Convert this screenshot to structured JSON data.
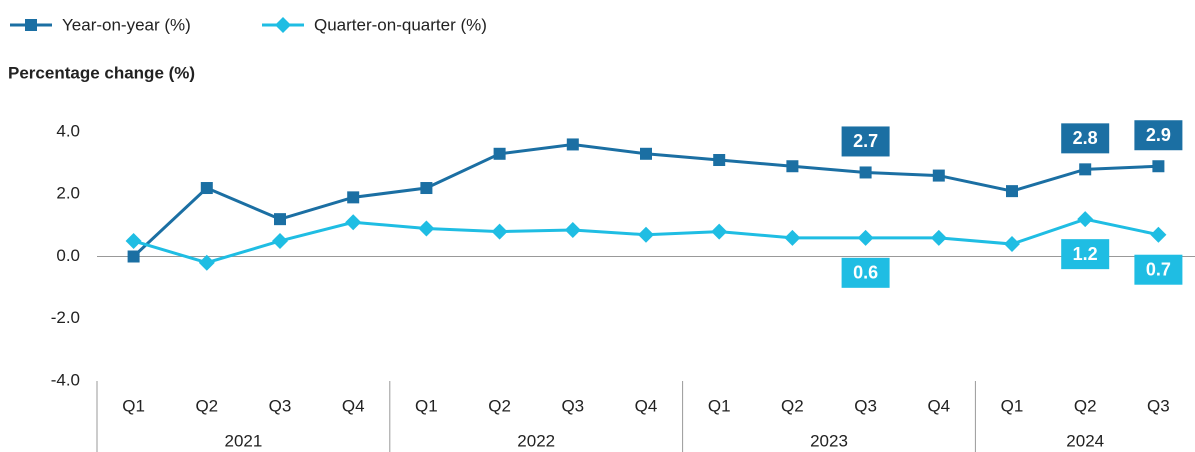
{
  "chart_data": {
    "type": "line",
    "y_axis_label": "Percentage change (%)",
    "categories": [
      "Q1",
      "Q2",
      "Q3",
      "Q4",
      "Q1",
      "Q2",
      "Q3",
      "Q4",
      "Q1",
      "Q2",
      "Q3",
      "Q4",
      "Q1",
      "Q2",
      "Q3"
    ],
    "groups": [
      {
        "label": "2021",
        "size": 4
      },
      {
        "label": "2022",
        "size": 4
      },
      {
        "label": "2023",
        "size": 4
      },
      {
        "label": "2024",
        "size": 3
      }
    ],
    "series": [
      {
        "name": "Year-on-year (%)",
        "color": "#1b6fa3",
        "marker": "square",
        "values": [
          0.0,
          2.2,
          1.2,
          1.9,
          2.2,
          3.3,
          3.6,
          3.3,
          3.1,
          2.9,
          2.7,
          2.6,
          2.1,
          2.8,
          2.9
        ],
        "value_labels": [
          null,
          null,
          null,
          null,
          null,
          null,
          null,
          null,
          null,
          null,
          "2.7",
          null,
          null,
          "2.8",
          "2.9"
        ]
      },
      {
        "name": "Quarter-on-quarter (%)",
        "color": "#1fbde3",
        "marker": "diamond",
        "values": [
          0.5,
          -0.2,
          0.5,
          1.1,
          0.9,
          0.8,
          0.85,
          0.7,
          0.8,
          0.6,
          0.6,
          0.6,
          0.4,
          1.2,
          0.7
        ],
        "value_labels": [
          null,
          null,
          null,
          null,
          null,
          null,
          null,
          null,
          null,
          null,
          "0.6",
          null,
          null,
          "1.2",
          "0.7"
        ]
      }
    ],
    "ylim": [
      -4,
      4
    ],
    "yticks": [
      {
        "value": -4,
        "label": "-4.0"
      },
      {
        "value": -2,
        "label": "-2.0"
      },
      {
        "value": 0,
        "label": "0.0"
      },
      {
        "value": 2,
        "label": "2.0"
      },
      {
        "value": 4,
        "label": "4.0"
      }
    ],
    "legend": "top-left"
  }
}
